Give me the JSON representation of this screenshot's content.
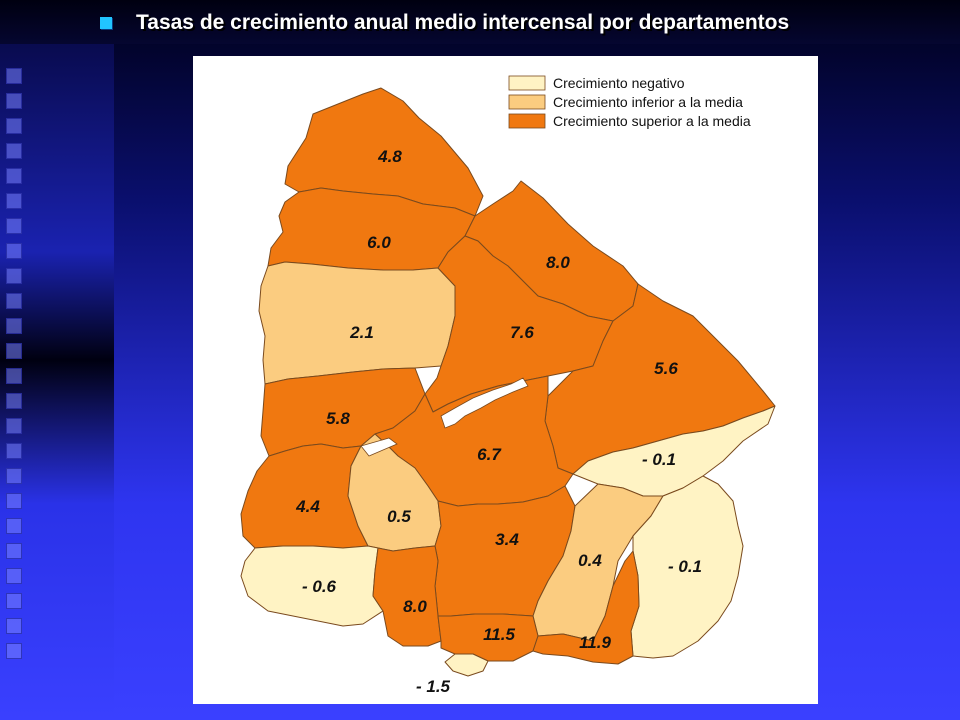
{
  "slide": {
    "title": "Tasas de crecimiento anual medio intercensal por departamentos"
  },
  "colors": {
    "negative": "#fff3c4",
    "below_mean": "#fbcc80",
    "above_mean": "#f07810",
    "border": "#7a4a1e",
    "rivers": "#ffffff"
  },
  "legend": {
    "items": [
      {
        "label": "Crecimiento negativo",
        "class": "negative"
      },
      {
        "label": "Crecimiento inferior a la media",
        "class": "below_mean"
      },
      {
        "label": "Crecimiento superior a la media",
        "class": "above_mean"
      }
    ]
  },
  "departments": [
    {
      "value": "4.8",
      "class": "above_mean"
    },
    {
      "value": "6.0",
      "class": "above_mean"
    },
    {
      "value": "8.0",
      "class": "above_mean"
    },
    {
      "value": "2.1",
      "class": "below_mean"
    },
    {
      "value": "7.6",
      "class": "above_mean"
    },
    {
      "value": "5.6",
      "class": "above_mean"
    },
    {
      "value": "5.8",
      "class": "above_mean"
    },
    {
      "value": "6.7",
      "class": "above_mean"
    },
    {
      "value": "- 0.1",
      "class": "negative"
    },
    {
      "value": "4.4",
      "class": "above_mean"
    },
    {
      "value": "0.5",
      "class": "below_mean"
    },
    {
      "value": "3.4",
      "class": "above_mean"
    },
    {
      "value": "0.4",
      "class": "below_mean"
    },
    {
      "value": "- 0.1",
      "class": "negative"
    },
    {
      "value": "- 0.6",
      "class": "negative"
    },
    {
      "value": "8.0",
      "class": "above_mean"
    },
    {
      "value": "11.5",
      "class": "above_mean"
    },
    {
      "value": "11.9",
      "class": "above_mean"
    },
    {
      "value": "- 1.5",
      "class": "negative"
    }
  ]
}
